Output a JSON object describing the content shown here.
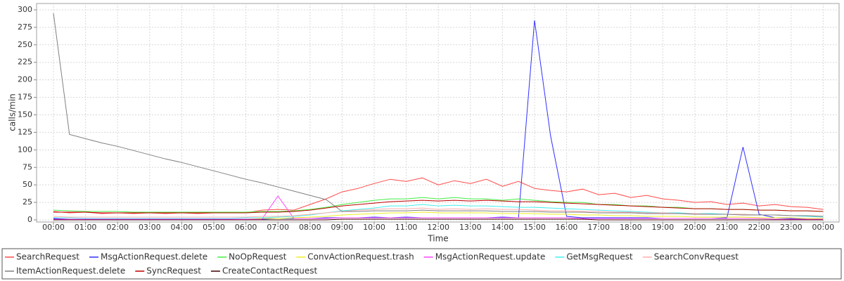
{
  "chart_data": {
    "type": "line",
    "y_label": "calls/min",
    "x_label": "Time",
    "categories": [
      "00:00",
      null,
      "01:00",
      null,
      "02:00",
      null,
      "03:00",
      null,
      "04:00",
      null,
      "05:00",
      null,
      "06:00",
      null,
      "07:00",
      null,
      "08:00",
      null,
      "09:00",
      null,
      "10:00",
      null,
      "11:00",
      null,
      "12:00",
      null,
      "13:00",
      null,
      "14:00",
      null,
      "15:00",
      null,
      "16:00",
      null,
      "17:00",
      null,
      "18:00",
      null,
      "19:00",
      null,
      "20:00",
      null,
      "21:00",
      null,
      "22:00",
      null,
      "23:00",
      null,
      "00:00"
    ],
    "ylim": [
      -3,
      309
    ],
    "yticks": [
      0,
      25,
      50,
      75,
      100,
      125,
      150,
      175,
      200,
      225,
      250,
      275,
      300
    ],
    "grid": true,
    "legend": "bottom",
    "series": [
      {
        "name": "SearchRequest",
        "color": "#ff4a4a",
        "values": [
          12,
          10,
          11,
          9,
          10,
          9,
          10,
          9,
          10,
          9,
          10,
          11,
          10,
          14,
          15,
          14,
          22,
          30,
          40,
          45,
          52,
          58,
          55,
          60,
          50,
          56,
          52,
          58,
          48,
          55,
          45,
          42,
          40,
          44,
          36,
          38,
          32,
          35,
          30,
          28,
          25,
          26,
          22,
          24,
          20,
          22,
          19,
          18,
          15
        ]
      },
      {
        "name": "MsgActionRequest.delete",
        "color": "#3030ff",
        "values": [
          2,
          1,
          1,
          1,
          1,
          1,
          1,
          1,
          1,
          1,
          1,
          1,
          1,
          1,
          2,
          2,
          2,
          3,
          3,
          3,
          4,
          3,
          4,
          3,
          3,
          3,
          3,
          3,
          4,
          3,
          285,
          120,
          5,
          3,
          3,
          3,
          3,
          3,
          2,
          2,
          2,
          2,
          3,
          104,
          8,
          3,
          2,
          2,
          2
        ]
      },
      {
        "name": "NoOpRequest",
        "color": "#44ee44",
        "values": [
          14,
          13,
          12,
          12,
          12,
          11,
          11,
          11,
          11,
          11,
          11,
          11,
          11,
          12,
          12,
          13,
          15,
          18,
          22,
          25,
          28,
          30,
          30,
          32,
          30,
          32,
          30,
          30,
          28,
          30,
          28,
          26,
          25,
          25,
          22,
          22,
          20,
          20,
          18,
          18,
          16,
          16,
          15,
          15,
          14,
          14,
          13,
          13,
          12
        ]
      },
      {
        "name": "ConvActionRequest.trash",
        "color": "#eeee22",
        "values": [
          1,
          1,
          1,
          1,
          1,
          1,
          1,
          1,
          1,
          1,
          1,
          1,
          1,
          2,
          2,
          3,
          4,
          5,
          7,
          8,
          9,
          10,
          10,
          11,
          10,
          10,
          10,
          10,
          9,
          9,
          9,
          8,
          8,
          7,
          7,
          6,
          6,
          5,
          5,
          5,
          4,
          4,
          4,
          4,
          3,
          3,
          3,
          2,
          2
        ]
      },
      {
        "name": "MsgActionRequest.update",
        "color": "#ff44ff",
        "values": [
          1,
          1,
          1,
          1,
          1,
          1,
          1,
          1,
          1,
          1,
          1,
          1,
          1,
          1,
          34,
          2,
          2,
          2,
          3,
          3,
          3,
          3,
          3,
          3,
          3,
          3,
          3,
          3,
          3,
          3,
          3,
          3,
          3,
          2,
          2,
          2,
          2,
          2,
          2,
          2,
          2,
          2,
          2,
          2,
          2,
          1,
          1,
          1,
          1
        ]
      },
      {
        "name": "GetMsgRequest",
        "color": "#44eeee",
        "values": [
          3,
          3,
          2,
          2,
          2,
          2,
          2,
          2,
          2,
          2,
          2,
          2,
          3,
          3,
          4,
          5,
          7,
          10,
          13,
          15,
          17,
          20,
          20,
          22,
          20,
          21,
          20,
          20,
          19,
          18,
          18,
          17,
          16,
          15,
          14,
          13,
          12,
          11,
          10,
          10,
          9,
          9,
          8,
          8,
          7,
          7,
          6,
          5,
          4
        ]
      },
      {
        "name": "SearchConvRequest",
        "color": "#ffafaf",
        "values": [
          5,
          4,
          4,
          4,
          4,
          4,
          4,
          4,
          4,
          4,
          4,
          4,
          4,
          5,
          5,
          6,
          8,
          10,
          12,
          14,
          15,
          16,
          16,
          17,
          15,
          16,
          15,
          16,
          15,
          15,
          14,
          13,
          13,
          12,
          12,
          11,
          11,
          10,
          10,
          9,
          9,
          8,
          8,
          8,
          7,
          7,
          6,
          6,
          5
        ]
      },
      {
        "name": "ItemActionRequest.delete",
        "color": "#808080",
        "values": [
          295,
          122,
          116,
          110,
          105,
          99,
          93,
          87,
          82,
          76,
          70,
          64,
          58,
          53,
          47,
          41,
          35,
          29,
          12,
          12,
          13,
          13,
          13,
          14,
          13,
          13,
          13,
          13,
          12,
          12,
          12,
          11,
          11,
          11,
          10,
          10,
          10,
          9,
          9,
          9,
          8,
          8,
          8,
          7,
          7,
          7,
          6,
          6,
          5
        ]
      },
      {
        "name": "SyncRequest",
        "color": "#c00000",
        "values": [
          11,
          11,
          11,
          10,
          10,
          10,
          10,
          10,
          10,
          10,
          10,
          10,
          10,
          11,
          11,
          12,
          14,
          17,
          20,
          22,
          24,
          26,
          27,
          28,
          27,
          28,
          27,
          28,
          27,
          26,
          26,
          25,
          24,
          23,
          22,
          21,
          20,
          19,
          18,
          17,
          16,
          16,
          15,
          15,
          14,
          14,
          13,
          13,
          12
        ]
      },
      {
        "name": "CreateContactRequest",
        "color": "#400000",
        "values": [
          0,
          0,
          0,
          0,
          0,
          0,
          0,
          0,
          0,
          0,
          0,
          0,
          0,
          0,
          0,
          0,
          0,
          0,
          1,
          1,
          1,
          1,
          1,
          1,
          1,
          1,
          1,
          1,
          1,
          1,
          1,
          1,
          1,
          1,
          0,
          0,
          0,
          0,
          0,
          0,
          0,
          0,
          0,
          0,
          0,
          0,
          0,
          0,
          0
        ]
      }
    ]
  }
}
